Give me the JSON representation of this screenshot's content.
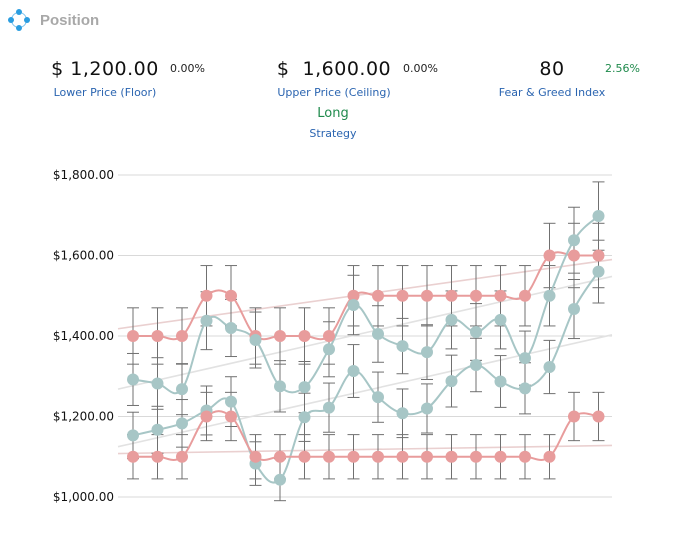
{
  "header": {
    "title": "Position",
    "icon": "position-icon"
  },
  "stats": {
    "floor": {
      "value": "$ 1,200.00",
      "change": "0.00%",
      "label": "Lower Price (Floor)"
    },
    "ceiling": {
      "value": "$  1,600.00",
      "change": "0.00%",
      "label": "Upper Price (Ceiling)"
    },
    "fear_greed": {
      "value": "80",
      "change": "2.56%",
      "label": "Fear & Greed Index"
    }
  },
  "strategy": {
    "value": "Long",
    "label": "Strategy"
  },
  "colors": {
    "price_series": "#a7c6c6",
    "bound_series": "#e89c9c",
    "error_bars": "#707070",
    "accent_green": "#1f8a4c",
    "label_blue": "#2a64b0"
  },
  "chart_data": {
    "type": "line",
    "ylim": [
      1000,
      1800
    ],
    "ticks": [
      {
        "value": 1000,
        "label": "$1,000.00"
      },
      {
        "value": 1200,
        "label": "$1,200.00"
      },
      {
        "value": 1400,
        "label": "$1,400.00"
      },
      {
        "value": 1600,
        "label": "$1,600.00"
      },
      {
        "value": 1800,
        "label": "$1,800.00"
      }
    ],
    "grid": true,
    "error_margin": 0.05,
    "series": [
      {
        "role": "ceiling",
        "color": "#e89c9c",
        "values": [
          1400,
          1400,
          1400,
          1500,
          1500,
          1400,
          1400,
          1400,
          1400,
          1500,
          1500,
          1500,
          1500,
          1500,
          1500,
          1500,
          1500,
          1600,
          1600,
          1600
        ]
      },
      {
        "role": "high",
        "color": "#a7c6c6",
        "values": [
          1292,
          1282,
          1268,
          1438,
          1420,
          1390,
          1275,
          1273,
          1367,
          1477,
          1405,
          1375,
          1360,
          1440,
          1410,
          1440,
          1345,
          1500,
          1638,
          1698
        ]
      },
      {
        "role": "low",
        "color": "#a7c6c6",
        "values": [
          1153,
          1167,
          1183,
          1215,
          1237,
          1083,
          1043,
          1198,
          1222,
          1313,
          1248,
          1208,
          1220,
          1288,
          1328,
          1287,
          1270,
          1323,
          1467,
          1560
        ]
      },
      {
        "role": "floor",
        "color": "#e89c9c",
        "values": [
          1100,
          1100,
          1100,
          1200,
          1200,
          1100,
          1100,
          1100,
          1100,
          1100,
          1100,
          1100,
          1100,
          1100,
          1100,
          1100,
          1100,
          1100,
          1200,
          1200
        ]
      }
    ],
    "trendlines": [
      {
        "color": "#ead0d0",
        "from": 1418,
        "to": 1590
      },
      {
        "color": "#e2e2e2",
        "from": 1268,
        "to": 1548
      },
      {
        "color": "#e2e2e2",
        "from": 1125,
        "to": 1403
      },
      {
        "color": "#ead0d0",
        "from": 1108,
        "to": 1128
      }
    ]
  }
}
